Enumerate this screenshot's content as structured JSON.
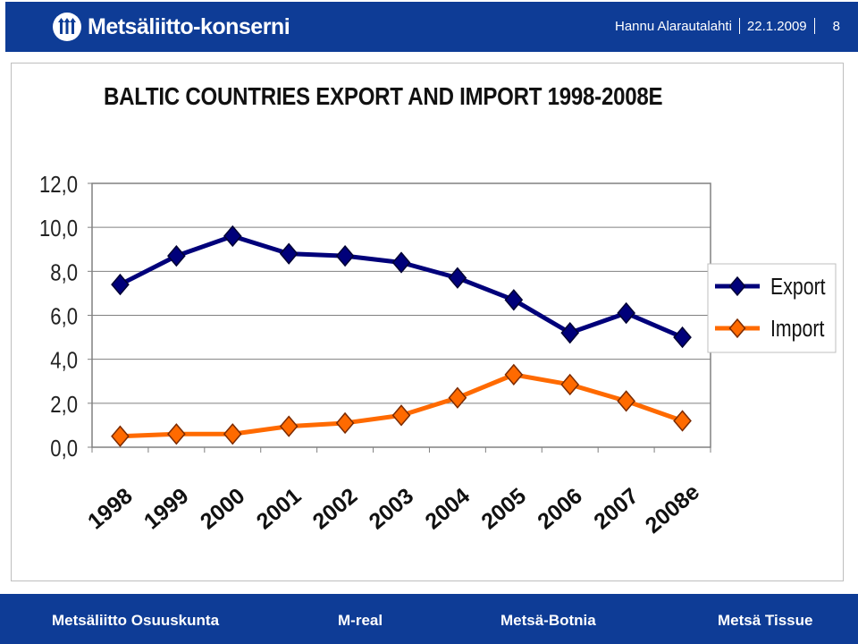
{
  "header": {
    "logo_text": "Metsäliitto-konserni",
    "author": "Hannu Alarautalahti",
    "date": "22.1.2009",
    "page": "8"
  },
  "slide": {
    "title": "BALTIC COUNTRIES EXPORT AND IMPORT 1998-2008E"
  },
  "chart_data": {
    "type": "line",
    "title": "BALTIC COUNTRIES EXPORT AND IMPORT 1998-2008E",
    "categories": [
      "1998",
      "1999",
      "2000",
      "2001",
      "2002",
      "2003",
      "2004",
      "2005",
      "2006",
      "2007",
      "2008e"
    ],
    "series": [
      {
        "name": "Export",
        "color": "#00007a",
        "values": [
          7.4,
          8.7,
          9.6,
          8.8,
          8.7,
          8.4,
          7.7,
          6.7,
          5.2,
          6.1,
          5.0
        ]
      },
      {
        "name": "Import",
        "color": "#ff6a00",
        "values": [
          0.5,
          0.6,
          0.6,
          0.95,
          1.1,
          1.45,
          2.25,
          3.3,
          2.85,
          2.1,
          1.2
        ]
      }
    ],
    "y_ticks": [
      "12,0",
      "10,0",
      "8,0",
      "6,0",
      "4,0",
      "2,0",
      "0,0"
    ],
    "ylim": [
      0,
      12
    ],
    "grid": true,
    "legend": "right",
    "plot_background": "#ffffff"
  },
  "footer": {
    "companies": [
      "Metsäliitto Osuuskunta",
      "M-real",
      "Metsä-Botnia",
      "Metsä Tissue"
    ]
  }
}
